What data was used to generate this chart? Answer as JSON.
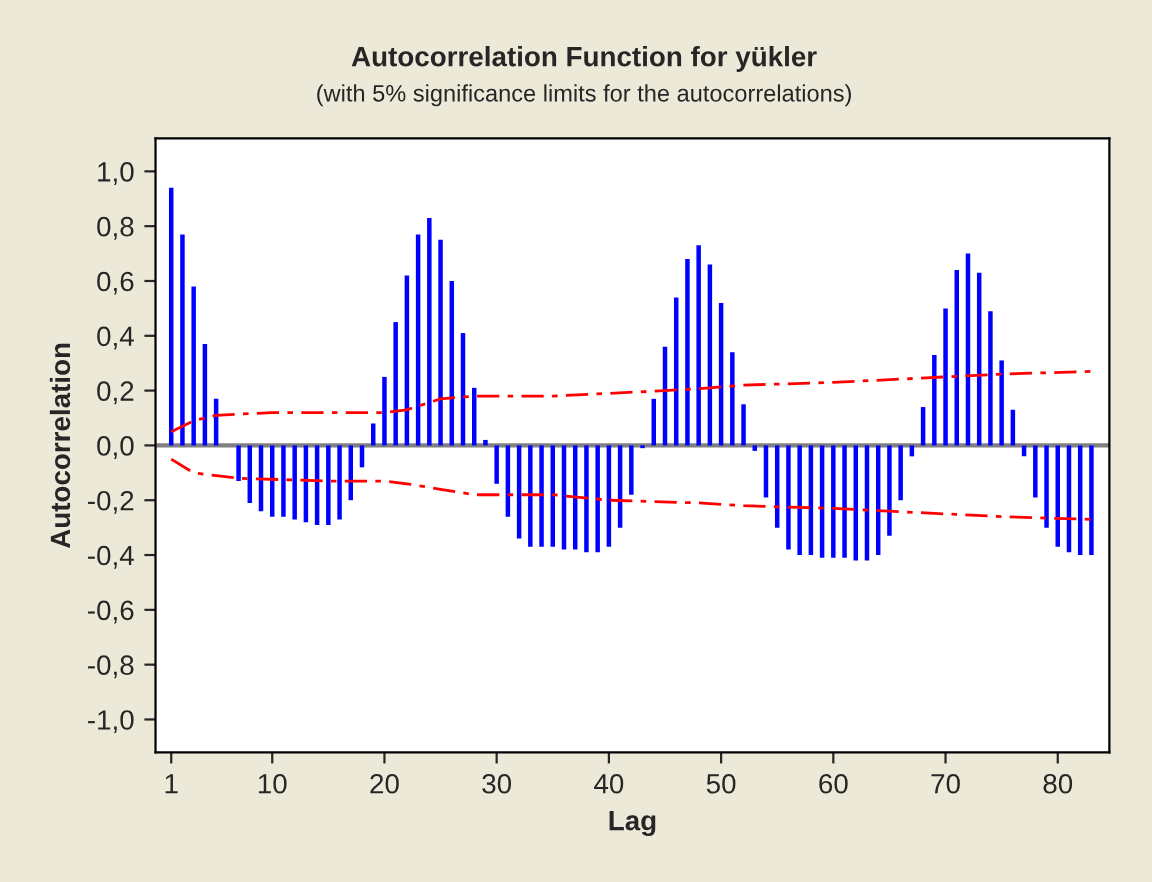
{
  "chart_data": {
    "type": "bar",
    "title": "Autocorrelation Function for yükler",
    "subtitle": "(with 5% significance limits for the autocorrelations)",
    "xlabel": "Lag",
    "ylabel": "Autocorrelation",
    "x": [
      1,
      2,
      3,
      4,
      5,
      6,
      7,
      8,
      9,
      10,
      11,
      12,
      13,
      14,
      15,
      16,
      17,
      18,
      19,
      20,
      21,
      22,
      23,
      24,
      25,
      26,
      27,
      28,
      29,
      30,
      31,
      32,
      33,
      34,
      35,
      36,
      37,
      38,
      39,
      40,
      41,
      42,
      43,
      44,
      45,
      46,
      47,
      48,
      49,
      50,
      51,
      52,
      53,
      54,
      55,
      56,
      57,
      58,
      59,
      60,
      61,
      62,
      63,
      64,
      65,
      66,
      67,
      68,
      69,
      70,
      71,
      72,
      73,
      74,
      75,
      76,
      77,
      78,
      79,
      80,
      81,
      82,
      83
    ],
    "series": [
      {
        "color": "#0000ff",
        "values": [
          0.94,
          0.77,
          0.58,
          0.37,
          0.17,
          0.0,
          -0.13,
          -0.21,
          -0.24,
          -0.26,
          -0.26,
          -0.27,
          -0.28,
          -0.29,
          -0.29,
          -0.27,
          -0.2,
          -0.08,
          0.08,
          0.25,
          0.45,
          0.62,
          0.77,
          0.83,
          0.75,
          0.6,
          0.41,
          0.21,
          0.02,
          -0.14,
          -0.26,
          -0.34,
          -0.37,
          -0.37,
          -0.37,
          -0.38,
          -0.38,
          -0.39,
          -0.39,
          -0.37,
          -0.3,
          -0.18,
          -0.01,
          0.17,
          0.36,
          0.54,
          0.68,
          0.73,
          0.66,
          0.52,
          0.34,
          0.15,
          -0.02,
          -0.19,
          -0.3,
          -0.38,
          -0.4,
          -0.4,
          -0.41,
          -0.41,
          -0.41,
          -0.42,
          -0.42,
          -0.4,
          -0.33,
          -0.2,
          -0.04,
          0.14,
          0.33,
          0.5,
          0.64,
          0.7,
          0.63,
          0.49,
          0.31,
          0.13,
          -0.04,
          -0.19,
          -0.3,
          -0.37,
          -0.39,
          -0.4,
          -0.4
        ]
      },
      {
        "type": "line",
        "color": "#ff0000",
        "line_style": "dashed",
        "x": [
          1,
          3,
          5,
          10,
          20,
          22,
          25,
          28,
          35,
          40,
          45,
          49,
          52,
          60,
          65,
          70,
          75,
          83
        ],
        "values": [
          0.05,
          0.09,
          0.11,
          0.12,
          0.12,
          0.13,
          0.17,
          0.18,
          0.18,
          0.19,
          0.2,
          0.21,
          0.22,
          0.23,
          0.24,
          0.25,
          0.26,
          0.27
        ]
      },
      {
        "type": "line",
        "color": "#ff0000",
        "line_style": "dashed",
        "x": [
          1,
          3,
          5,
          7,
          15,
          20,
          22,
          25,
          28,
          35,
          40,
          48,
          52,
          60,
          65,
          70,
          75,
          83
        ],
        "values": [
          -0.05,
          -0.1,
          -0.11,
          -0.12,
          -0.13,
          -0.13,
          -0.14,
          -0.16,
          -0.18,
          -0.18,
          -0.2,
          -0.21,
          -0.22,
          -0.23,
          -0.24,
          -0.25,
          -0.26,
          -0.27
        ]
      }
    ],
    "xlim": [
      -0.4,
      84.6
    ],
    "xticks": [
      1,
      10,
      20,
      30,
      40,
      50,
      60,
      70,
      80
    ],
    "ylim": [
      -1.12,
      1.12
    ],
    "yticks": [
      {
        "value": -1.0,
        "label": "-1,0"
      },
      {
        "value": -0.8,
        "label": "-0,8"
      },
      {
        "value": -0.6,
        "label": "-0,6"
      },
      {
        "value": -0.4,
        "label": "-0,4"
      },
      {
        "value": -0.2,
        "label": "-0,2"
      },
      {
        "value": 0.0,
        "label": "0,0"
      },
      {
        "value": 0.2,
        "label": "0,2"
      },
      {
        "value": 0.4,
        "label": "0,4"
      },
      {
        "value": 0.6,
        "label": "0,6"
      },
      {
        "value": 0.8,
        "label": "0,8"
      },
      {
        "value": 1.0,
        "label": "1,0"
      }
    ],
    "ref_lines": [
      {
        "axis": "y",
        "value": 0,
        "color": "#808080"
      }
    ],
    "grid": false,
    "legend": false
  }
}
